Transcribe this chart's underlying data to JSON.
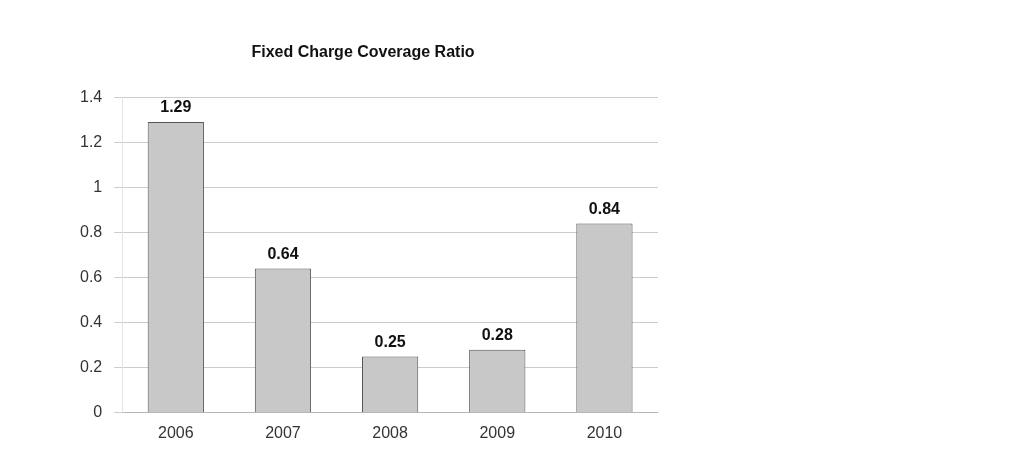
{
  "chart_data": {
    "type": "bar",
    "title": "Fixed Charge Coverage Ratio",
    "categories": [
      "2006",
      "2007",
      "2008",
      "2009",
      "2010"
    ],
    "values": [
      1.29,
      0.64,
      0.25,
      0.28,
      0.84
    ],
    "color": "#c8c8c8",
    "ylim": [
      0,
      1.4
    ],
    "yticks": [
      0,
      0.2,
      0.4,
      0.6,
      0.8,
      1,
      1.2,
      1.4
    ],
    "grid": "y",
    "data_labels": true,
    "legend": false
  }
}
